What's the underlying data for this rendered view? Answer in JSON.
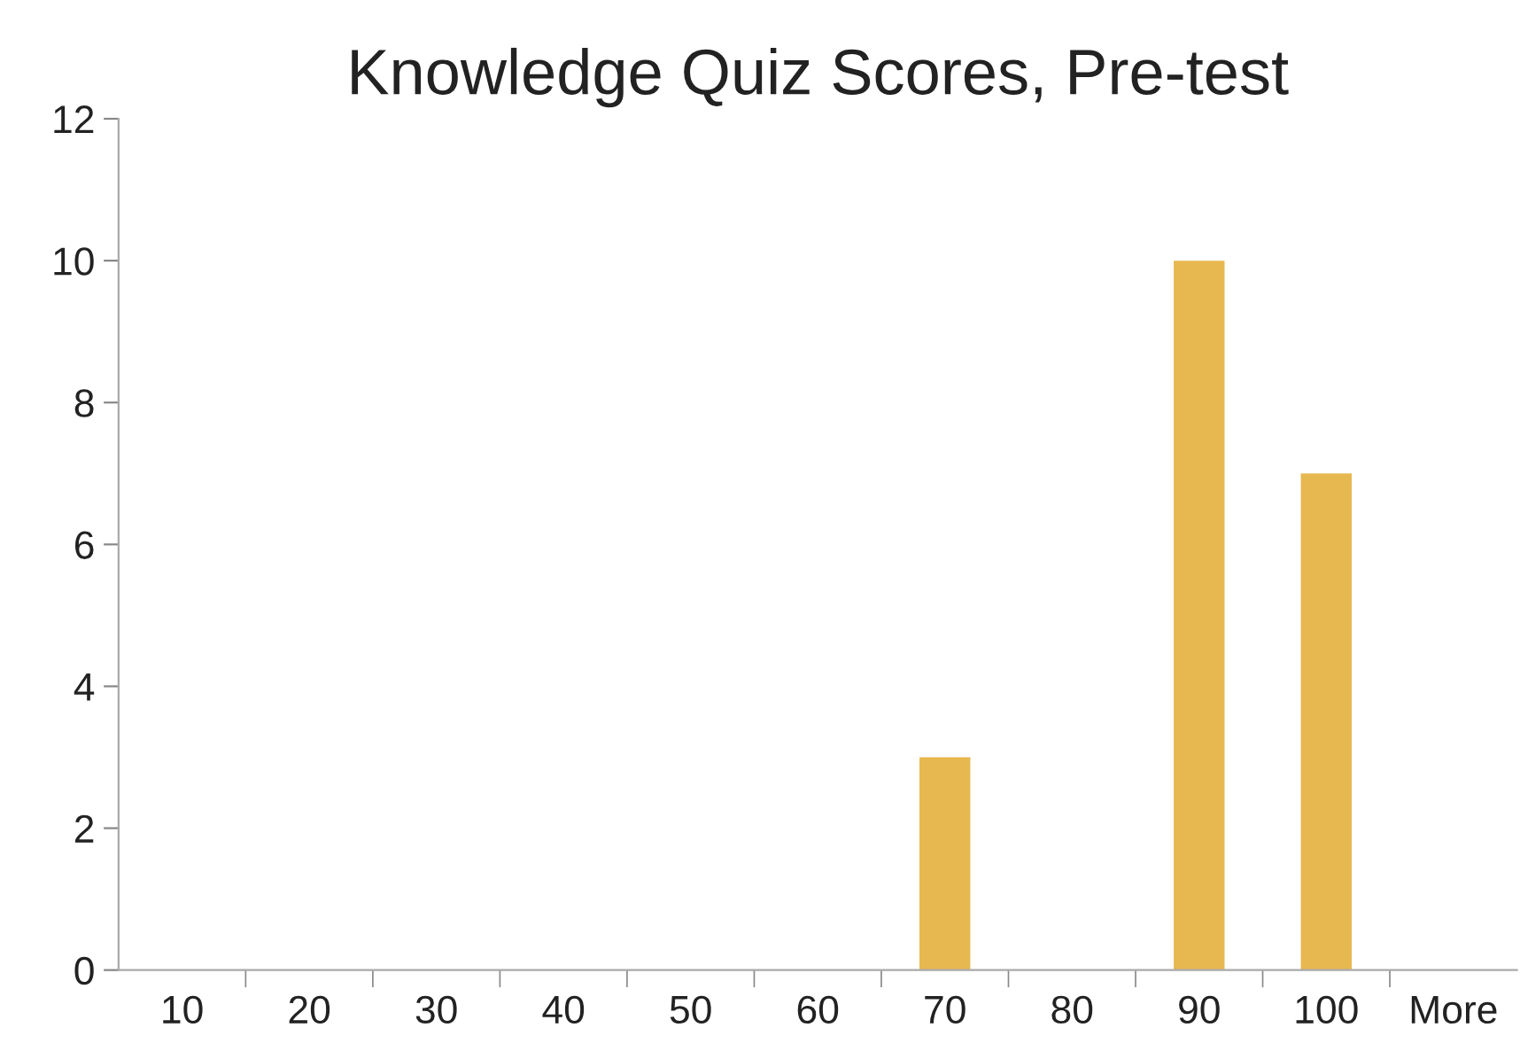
{
  "chart_data": {
    "type": "bar",
    "title": "Knowledge Quiz Scores, Pre-test",
    "categories": [
      "10",
      "20",
      "30",
      "40",
      "50",
      "60",
      "70",
      "80",
      "90",
      "100",
      "More"
    ],
    "values": [
      0,
      0,
      0,
      0,
      0,
      0,
      3,
      0,
      10,
      7,
      0
    ],
    "color": "#e7b84f",
    "ylim": [
      0,
      12
    ],
    "yticks": [
      0,
      2,
      4,
      6,
      8,
      10,
      12
    ],
    "grid": false
  }
}
